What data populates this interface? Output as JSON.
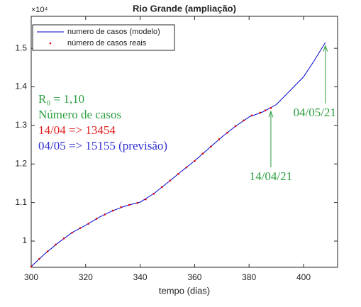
{
  "chart_data": {
    "type": "line",
    "title": "Rio Grande (ampliação)",
    "xlabel": "tempo (dias)",
    "y_multiplier": "×10⁴",
    "xlim": [
      300,
      412.5
    ],
    "ylim": [
      0.932,
      1.583
    ],
    "xticks": [
      300,
      320,
      340,
      360,
      380,
      400
    ],
    "yticks": [
      1,
      1.1,
      1.2,
      1.3,
      1.4,
      1.5
    ],
    "legend": "top-left",
    "series": [
      {
        "name": "numero de casos (modelo)",
        "color": "#0000cc",
        "style": "line",
        "x": [
          300,
          305,
          310,
          315,
          320,
          325,
          330,
          335,
          340,
          345,
          350,
          355,
          360,
          365,
          370,
          375,
          380,
          385,
          390,
          395,
          400,
          404,
          408
        ],
        "values": [
          0.934,
          0.967,
          0.996,
          1.022,
          1.041,
          1.062,
          1.079,
          1.092,
          1.101,
          1.123,
          1.151,
          1.18,
          1.208,
          1.239,
          1.27,
          1.298,
          1.322,
          1.335,
          1.354,
          1.39,
          1.426,
          1.469,
          1.515
        ]
      },
      {
        "name": "número de casos reais",
        "color": "#e00000",
        "style": "dots",
        "x": [
          300,
          303,
          306,
          309,
          312,
          315,
          318,
          321,
          324,
          327,
          330,
          333,
          336,
          339,
          342,
          345,
          348,
          351,
          354,
          357,
          360,
          363,
          366,
          369,
          372,
          375,
          378,
          381,
          384,
          386,
          388
        ],
        "values": [
          0.934,
          0.954,
          0.973,
          0.991,
          1.007,
          1.022,
          1.034,
          1.045,
          1.058,
          1.069,
          1.079,
          1.088,
          1.094,
          1.099,
          1.108,
          1.123,
          1.14,
          1.157,
          1.174,
          1.191,
          1.208,
          1.227,
          1.245,
          1.264,
          1.281,
          1.298,
          1.313,
          1.326,
          1.333,
          1.339,
          1.345
        ]
      }
    ],
    "annotations": [
      {
        "text": "R₀ = 1,10",
        "color": "#2ca040"
      },
      {
        "text": "Número de casos",
        "color": "#2ca040"
      },
      {
        "text": "14/04 => 13454",
        "color": "#e02020"
      },
      {
        "text": "04/05 => 15155 (previsão)",
        "color": "#3030d0"
      }
    ],
    "arrows": [
      {
        "text": "14/04/21",
        "x": 388,
        "y": 1.3454,
        "color": "#2ca040"
      },
      {
        "text": "04/05/21",
        "x": 408,
        "y": 1.5155,
        "color": "#2ca040"
      }
    ]
  }
}
